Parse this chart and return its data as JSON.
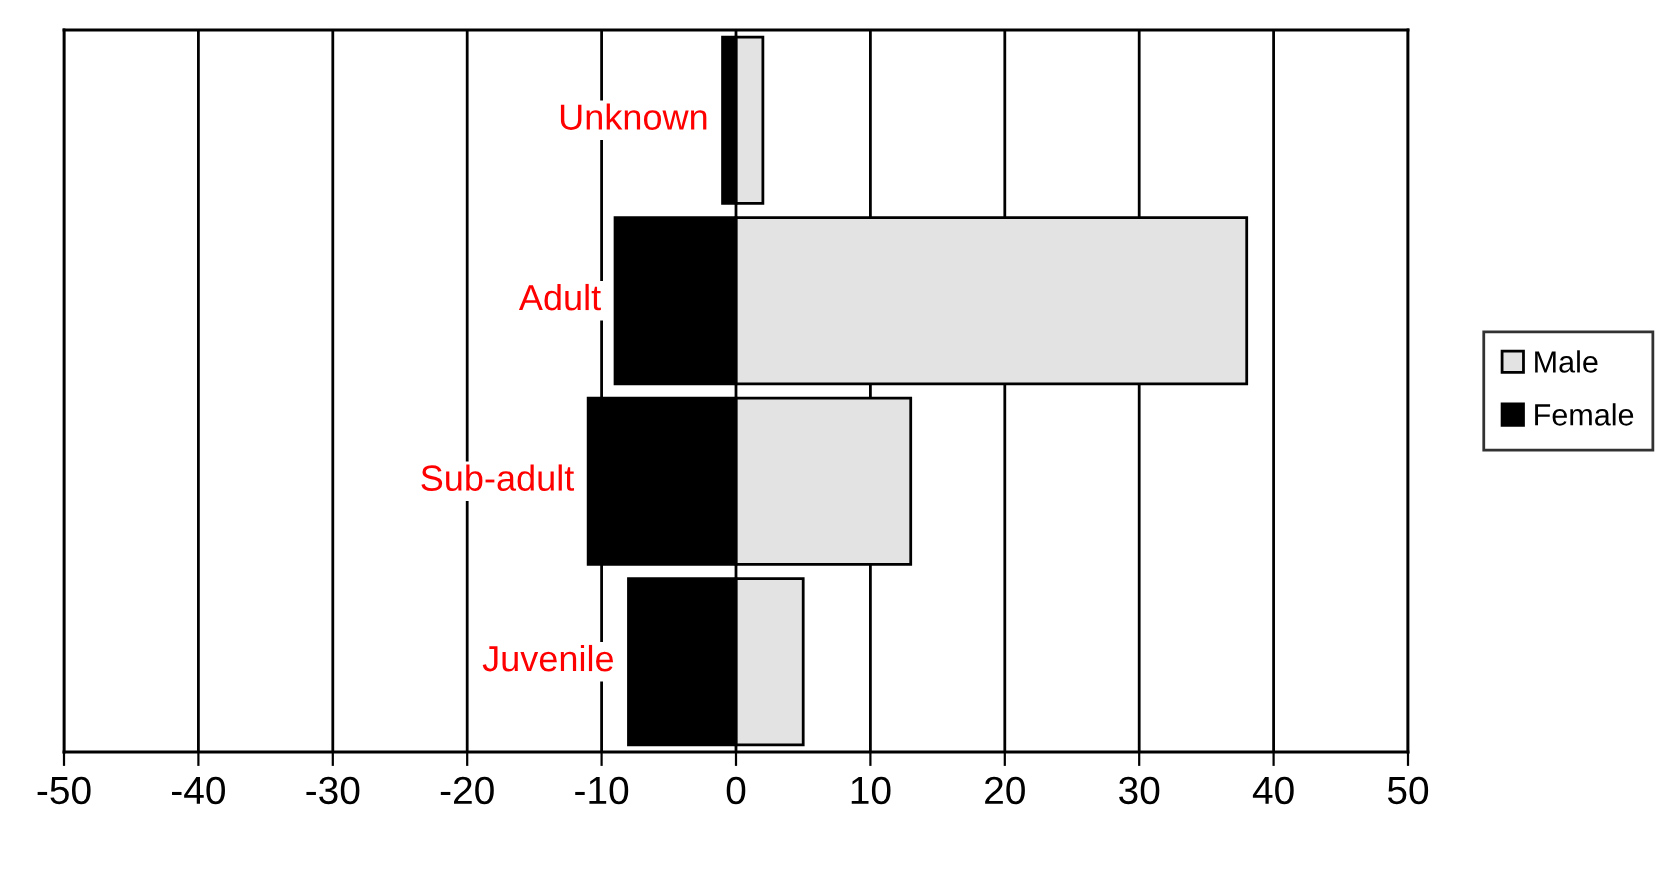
{
  "chart_data": {
    "type": "bar",
    "orientation": "horizontal",
    "categories": [
      "Unknown",
      "Adult",
      "Sub-adult",
      "Juvenile"
    ],
    "series": [
      {
        "name": "Male",
        "color": "#e3e3e3",
        "values": [
          2,
          38,
          13,
          5
        ]
      },
      {
        "name": "Female",
        "color": "#000000",
        "values": [
          -1,
          -9,
          -11,
          -8
        ]
      }
    ],
    "stacked": true,
    "xlim": [
      -50,
      50
    ],
    "xticks": [
      -50,
      -40,
      -30,
      -20,
      -10,
      0,
      10,
      20,
      30,
      40,
      50
    ],
    "grid": "x",
    "legend": "right"
  }
}
